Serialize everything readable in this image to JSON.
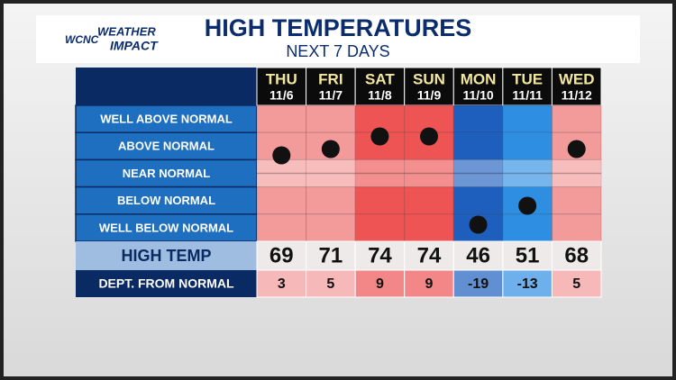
{
  "logo": {
    "brand": "WCNC",
    "line1": "WEATHER",
    "line2": "IMPACT"
  },
  "title": "HIGH TEMPERATURES",
  "subtitle": "NEXT 7 DAYS",
  "rows": [
    "WELL ABOVE NORMAL",
    "ABOVE NORMAL",
    "NEAR NORMAL",
    "BELOW NORMAL",
    "WELL BELOW NORMAL"
  ],
  "high_temp_label": "HIGH TEMP",
  "departure_label": "DEPT. FROM NORMAL",
  "days": [
    {
      "day": "THU",
      "date": "11/6",
      "high": 69,
      "departure": 3,
      "color": "#f39a9a"
    },
    {
      "day": "FRI",
      "date": "11/7",
      "high": 71,
      "departure": 5,
      "color": "#f39a9a"
    },
    {
      "day": "SAT",
      "date": "11/8",
      "high": 74,
      "departure": 9,
      "color": "#ee5454"
    },
    {
      "day": "SUN",
      "date": "11/9",
      "high": 74,
      "departure": 9,
      "color": "#ee5454"
    },
    {
      "day": "MON",
      "date": "11/10",
      "high": 46,
      "departure": -19,
      "color": "#1e5fbe"
    },
    {
      "day": "TUE",
      "date": "11/11",
      "high": 51,
      "departure": -13,
      "color": "#2e8fe2"
    },
    {
      "day": "WED",
      "date": "11/12",
      "high": 68,
      "departure": 5,
      "color": "#f39a9a"
    }
  ]
}
